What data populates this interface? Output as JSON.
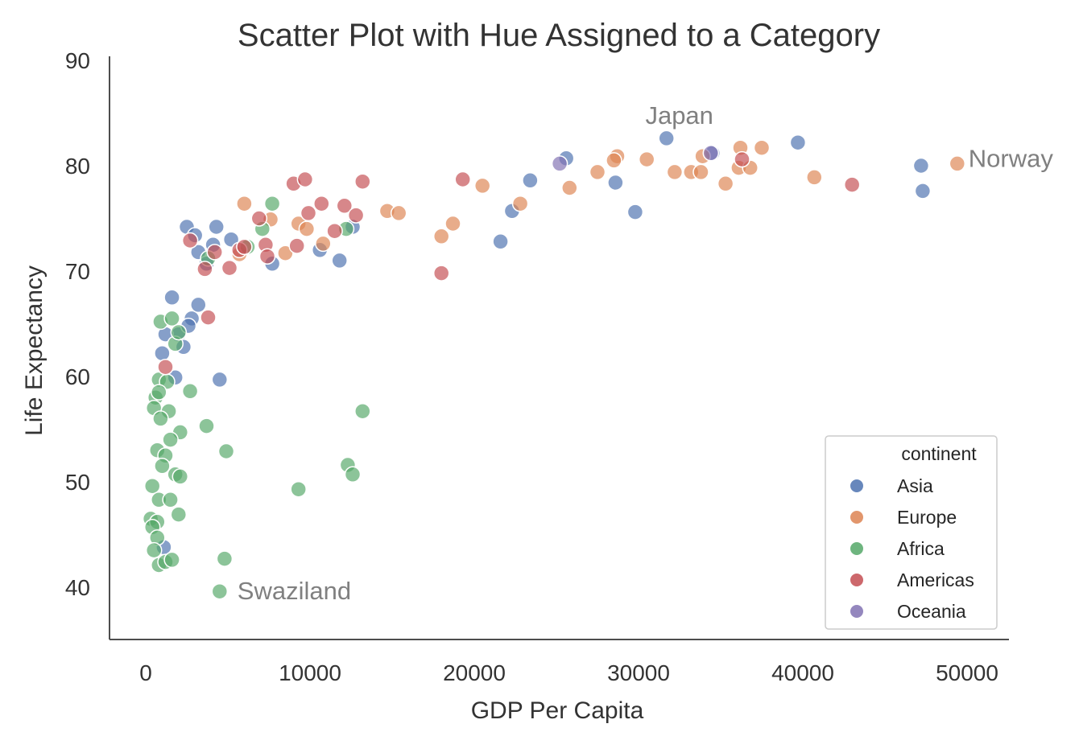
{
  "chart_data": {
    "type": "scatter",
    "title": "Scatter Plot with Hue Assigned to a Category",
    "xlabel": "GDP Per Capita",
    "ylabel": "Life Expectancy",
    "xlim": [
      -2500,
      52500
    ],
    "ylim": [
      35,
      90
    ],
    "xticks": [
      0,
      10000,
      20000,
      30000,
      40000,
      50000
    ],
    "yticks": [
      40,
      50,
      60,
      70,
      80,
      90
    ],
    "grid": false,
    "legend": {
      "title": "continent",
      "placement": "bottom-right"
    },
    "point_opacity": 0.68,
    "series": [
      {
        "name": "Asia",
        "color": "#4c72b0",
        "points": [
          [
            2500,
            74.2
          ],
          [
            3000,
            73.4
          ],
          [
            4300,
            74.2
          ],
          [
            5200,
            73.0
          ],
          [
            3200,
            71.8
          ],
          [
            4100,
            72.5
          ],
          [
            3700,
            70.7
          ],
          [
            10600,
            72.0
          ],
          [
            12600,
            74.2
          ],
          [
            11800,
            71.0
          ],
          [
            7700,
            70.7
          ],
          [
            2800,
            65.5
          ],
          [
            2000,
            64.0
          ],
          [
            2600,
            64.8
          ],
          [
            3200,
            66.8
          ],
          [
            1600,
            67.5
          ],
          [
            1200,
            64.0
          ],
          [
            1000,
            62.2
          ],
          [
            2300,
            62.8
          ],
          [
            1800,
            59.9
          ],
          [
            4500,
            59.7
          ],
          [
            1100,
            43.8
          ],
          [
            22300,
            75.7
          ],
          [
            21600,
            72.8
          ],
          [
            23400,
            78.6
          ],
          [
            25600,
            80.7
          ],
          [
            28600,
            78.4
          ],
          [
            29800,
            75.6
          ],
          [
            31700,
            82.6
          ],
          [
            34500,
            81.2
          ],
          [
            39700,
            82.2
          ],
          [
            47200,
            80.0
          ],
          [
            47300,
            77.6
          ]
        ]
      },
      {
        "name": "Europe",
        "color": "#dd8452",
        "points": [
          [
            6000,
            76.4
          ],
          [
            7600,
            74.9
          ],
          [
            5700,
            71.6
          ],
          [
            8500,
            71.7
          ],
          [
            9300,
            74.5
          ],
          [
            9800,
            74.0
          ],
          [
            10800,
            72.6
          ],
          [
            14700,
            75.7
          ],
          [
            15400,
            75.5
          ],
          [
            18000,
            73.3
          ],
          [
            18700,
            74.5
          ],
          [
            20500,
            78.1
          ],
          [
            22800,
            76.4
          ],
          [
            25800,
            77.9
          ],
          [
            27500,
            79.4
          ],
          [
            28700,
            80.9
          ],
          [
            28500,
            80.5
          ],
          [
            30500,
            80.6
          ],
          [
            32200,
            79.4
          ],
          [
            33200,
            79.4
          ],
          [
            33800,
            79.4
          ],
          [
            33900,
            80.9
          ],
          [
            35300,
            78.3
          ],
          [
            36100,
            79.8
          ],
          [
            36200,
            81.7
          ],
          [
            36800,
            79.8
          ],
          [
            37500,
            81.7
          ],
          [
            40700,
            78.9
          ],
          [
            49400,
            80.2
          ]
        ]
      },
      {
        "name": "Africa",
        "color": "#55a868",
        "points": [
          [
            7100,
            74.0
          ],
          [
            7700,
            76.4
          ],
          [
            12200,
            74.0
          ],
          [
            6200,
            72.3
          ],
          [
            3800,
            71.2
          ],
          [
            900,
            65.2
          ],
          [
            1600,
            65.5
          ],
          [
            1800,
            63.1
          ],
          [
            2000,
            64.2
          ],
          [
            800,
            59.7
          ],
          [
            1300,
            59.5
          ],
          [
            600,
            58.0
          ],
          [
            800,
            58.5
          ],
          [
            2700,
            58.6
          ],
          [
            500,
            57.0
          ],
          [
            1400,
            56.7
          ],
          [
            900,
            56.0
          ],
          [
            3700,
            55.3
          ],
          [
            2100,
            54.7
          ],
          [
            1500,
            54.0
          ],
          [
            700,
            53.0
          ],
          [
            1200,
            52.5
          ],
          [
            1000,
            51.5
          ],
          [
            4900,
            52.9
          ],
          [
            13200,
            56.7
          ],
          [
            1800,
            50.7
          ],
          [
            2100,
            50.5
          ],
          [
            400,
            49.6
          ],
          [
            9300,
            49.3
          ],
          [
            12300,
            51.6
          ],
          [
            12600,
            50.7
          ],
          [
            800,
            48.3
          ],
          [
            1500,
            48.3
          ],
          [
            300,
            46.5
          ],
          [
            700,
            46.2
          ],
          [
            2000,
            46.9
          ],
          [
            400,
            45.7
          ],
          [
            700,
            44.7
          ],
          [
            500,
            43.5
          ],
          [
            800,
            42.1
          ],
          [
            1200,
            42.4
          ],
          [
            1600,
            42.6
          ],
          [
            4800,
            42.7
          ],
          [
            4500,
            39.6
          ]
        ]
      },
      {
        "name": "Americas",
        "color": "#c44e52",
        "points": [
          [
            2700,
            72.9
          ],
          [
            3600,
            70.2
          ],
          [
            4200,
            71.8
          ],
          [
            5100,
            70.3
          ],
          [
            5700,
            72.0
          ],
          [
            6000,
            72.3
          ],
          [
            6900,
            75.0
          ],
          [
            7300,
            72.5
          ],
          [
            7400,
            71.4
          ],
          [
            9000,
            78.3
          ],
          [
            9700,
            78.7
          ],
          [
            9900,
            75.5
          ],
          [
            9200,
            72.4
          ],
          [
            10700,
            76.4
          ],
          [
            11500,
            73.8
          ],
          [
            12100,
            76.2
          ],
          [
            12800,
            75.3
          ],
          [
            13200,
            78.5
          ],
          [
            3800,
            65.6
          ],
          [
            1200,
            60.9
          ],
          [
            18000,
            69.8
          ],
          [
            19300,
            78.7
          ],
          [
            36300,
            80.6
          ],
          [
            43000,
            78.2
          ]
        ]
      },
      {
        "name": "Oceania",
        "color": "#8172b3",
        "points": [
          [
            25200,
            80.2
          ],
          [
            34400,
            81.2
          ]
        ]
      }
    ],
    "annotations": [
      {
        "text": "Japan",
        "x": 31700,
        "y": 82.6
      },
      {
        "text": "Norway",
        "x": 49400,
        "y": 80.2
      },
      {
        "text": "Swaziland",
        "x": 4500,
        "y": 39.6
      }
    ]
  }
}
